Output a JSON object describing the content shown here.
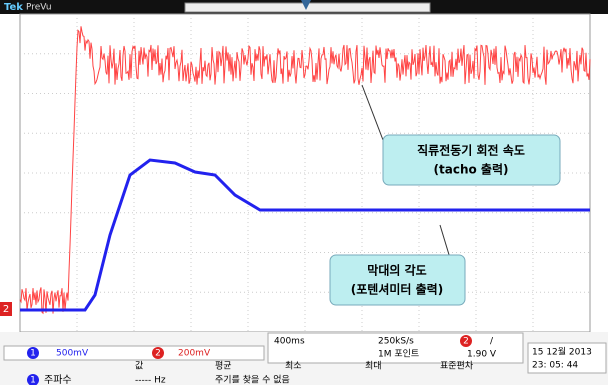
{
  "header": {
    "brand": "Tek",
    "mode": "PreVu"
  },
  "annotations": [
    {
      "lines": [
        "직류전동기 회전 속도",
        "(tacho 출력)"
      ]
    },
    {
      "lines": [
        "막대의 각도",
        "(포텐셔미터 출력)"
      ]
    }
  ],
  "ground_marker": "2",
  "status": {
    "ch1": {
      "number": "1",
      "scale": "500mV"
    },
    "ch2": {
      "number": "2",
      "scale": "200mV"
    },
    "timebase": "400ms",
    "sample_rate": "250kS/s",
    "record_length": "1M 포인트",
    "trigger": {
      "channel": "2",
      "slope": "/",
      "level": "1.90 V"
    },
    "date": "15 12월 2013",
    "time": "23: 05: 44"
  },
  "measurements": {
    "channel": "1",
    "name": "주파수",
    "headers": [
      "값",
      "평균",
      "최소",
      "최대",
      "표준편차"
    ],
    "value": "----- Hz",
    "note": "주기를 찾을 수 없음"
  }
}
